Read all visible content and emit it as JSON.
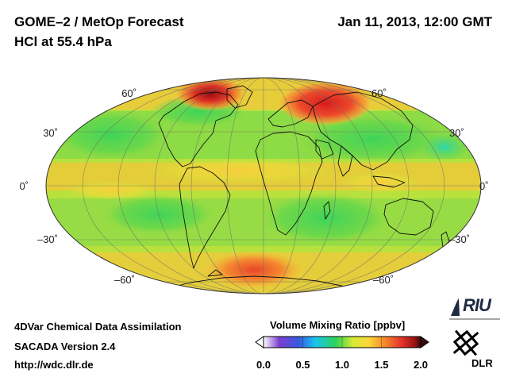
{
  "header": {
    "title_line1": "GOME–2 / MetOp Forecast",
    "title_line2": "HCl at 55.4 hPa",
    "date": "Jan 11, 2013, 12:00 GMT"
  },
  "map": {
    "projection": "Mollweide",
    "graticule": true,
    "coastlines": true,
    "lat_labels_left": [
      "60˚",
      "30˚",
      "0˚",
      "–30˚",
      "–60˚"
    ],
    "lat_labels_right": [
      "60˚",
      "30˚",
      "0˚",
      "–30˚",
      "–60˚"
    ]
  },
  "colorbar": {
    "title": "Volume Mixing Ratio [ppbv]",
    "ticks": [
      "0.0",
      "0.5",
      "1.0",
      "1.5",
      "2.0"
    ],
    "min": 0.0,
    "max": 2.0,
    "colors": [
      "#ffffff",
      "#7a3fcf",
      "#3a57e0",
      "#19c4ee",
      "#2fd35a",
      "#d8ea30",
      "#fbd63a",
      "#f48a2a",
      "#e3332a",
      "#9b1313",
      "#3a0a0a"
    ]
  },
  "footer": {
    "line1": "4DVar Chemical Data Assimilation",
    "line2": "SACADA Version 2.4",
    "line3": "http://wdc.dlr.de"
  },
  "logos": {
    "riu": "RIU",
    "dlr": "DLR"
  }
}
